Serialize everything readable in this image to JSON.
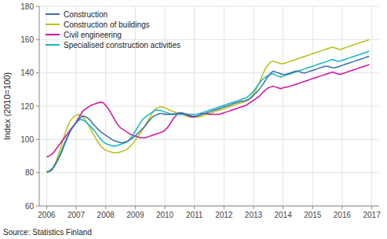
{
  "chart_data": {
    "type": "line",
    "y_label": "Index (2010=100)",
    "annotations": [
      "Source: Statistics Finland"
    ],
    "xlim": [
      2005.75,
      2017.25
    ],
    "ylim": [
      60,
      180
    ],
    "xticks": [
      2006,
      2007,
      2008,
      2009,
      2010,
      2011,
      2012,
      2013,
      2014,
      2015,
      2016,
      2017
    ],
    "yticks": [
      60,
      80,
      100,
      120,
      140,
      160,
      180
    ],
    "grid": true,
    "legend": "upper left",
    "x": [
      2006,
      2006.0833333333,
      2006.1666666667,
      2006.25,
      2006.3333333333,
      2006.4166666667,
      2006.5,
      2006.5833333333,
      2006.6666666667,
      2006.75,
      2006.8333333333,
      2006.9166666667,
      2007,
      2007.0833333333,
      2007.1666666667,
      2007.25,
      2007.3333333333,
      2007.4166666667,
      2007.5,
      2007.5833333333,
      2007.6666666667,
      2007.75,
      2007.8333333333,
      2007.9166666667,
      2008,
      2008.0833333333,
      2008.1666666667,
      2008.25,
      2008.3333333333,
      2008.4166666667,
      2008.5,
      2008.5833333333,
      2008.6666666667,
      2008.75,
      2008.8333333333,
      2008.9166666667,
      2009,
      2009.0833333333,
      2009.1666666667,
      2009.25,
      2009.3333333333,
      2009.4166666667,
      2009.5,
      2009.5833333333,
      2009.6666666667,
      2009.75,
      2009.8333333333,
      2009.9166666667,
      2010,
      2010.0833333333,
      2010.1666666667,
      2010.25,
      2010.3333333333,
      2010.4166666667,
      2010.5,
      2010.5833333333,
      2010.6666666667,
      2010.75,
      2010.8333333333,
      2010.9166666667,
      2011,
      2011.0833333333,
      2011.1666666667,
      2011.25,
      2011.3333333333,
      2011.4166666667,
      2011.5,
      2011.5833333333,
      2011.6666666667,
      2011.75,
      2011.8333333333,
      2011.9166666667,
      2012,
      2012.0833333333,
      2012.1666666667,
      2012.25,
      2012.3333333333,
      2012.4166666667,
      2012.5,
      2012.5833333333,
      2012.6666666667,
      2012.75,
      2012.8333333333,
      2012.9166666667,
      2013,
      2013.0833333333,
      2013.1666666667,
      2013.25,
      2013.3333333333,
      2013.4166666667,
      2013.5,
      2013.5833333333,
      2013.6666666667,
      2013.75,
      2013.8333333333,
      2013.9166666667,
      2014,
      2014.0833333333,
      2014.1666666667,
      2014.25,
      2014.3333333333,
      2014.4166666667,
      2014.5,
      2014.5833333333,
      2014.6666666667,
      2014.75,
      2014.8333333333,
      2014.9166666667,
      2015,
      2015.0833333333,
      2015.1666666667,
      2015.25,
      2015.3333333333,
      2015.4166666667,
      2015.5,
      2015.5833333333,
      2015.6666666667,
      2015.75,
      2015.8333333333,
      2015.9166666667,
      2016,
      2016.0833333333,
      2016.1666666667,
      2016.25,
      2016.3333333333,
      2016.4166666667,
      2016.5,
      2016.5833333333,
      2016.6666666667,
      2016.75,
      2016.8333333333,
      2016.9166666667
    ],
    "series": [
      {
        "name": "Construction of buildings",
        "color": "#b8c010",
        "values": [
          80.0,
          80.5,
          81.5,
          84.0,
          87.5,
          92.0,
          96.5,
          101.5,
          106.0,
          109.5,
          112.0,
          113.5,
          114.5,
          115.0,
          114.5,
          113.0,
          111.0,
          108.5,
          106.0,
          103.0,
          100.5,
          98.0,
          96.0,
          94.5,
          93.5,
          93.0,
          92.5,
          92.0,
          92.0,
          92.0,
          92.5,
          93.0,
          93.5,
          94.5,
          96.0,
          97.5,
          99.5,
          101.5,
          103.5,
          106.0,
          108.5,
          111.0,
          113.5,
          116.0,
          118.0,
          119.0,
          119.5,
          119.5,
          119.0,
          118.5,
          117.5,
          117.0,
          116.5,
          116.0,
          115.5,
          115.0,
          114.5,
          114.0,
          113.5,
          113.5,
          113.5,
          113.5,
          113.5,
          114.0,
          114.5,
          115.0,
          115.5,
          116.0,
          116.5,
          117.0,
          117.5,
          118.0,
          118.5,
          119.0,
          119.5,
          120.0,
          120.5,
          121.0,
          121.5,
          122.0,
          122.5,
          123.0,
          124.0,
          125.5,
          127.5,
          130.0,
          133.0,
          136.5,
          140.0,
          143.0,
          145.0,
          146.5,
          147.0,
          146.5,
          146.0,
          145.5,
          145.5,
          146.0,
          146.5,
          147.0,
          147.5,
          148.0,
          148.5,
          149.0,
          149.5,
          150.0,
          150.5,
          151.0,
          151.5,
          152.0,
          152.5,
          153.0,
          153.5,
          154.0,
          154.5,
          155.0,
          155.5,
          155.0,
          154.5,
          154.0,
          154.5,
          155.0,
          155.5,
          156.0,
          156.5,
          157.0,
          157.5,
          158.0,
          158.5,
          159.0,
          159.5,
          160.0
        ]
      },
      {
        "name": "Civil engineering",
        "color": "#d010a0",
        "values": [
          89.5,
          90.0,
          91.0,
          92.5,
          94.5,
          96.5,
          98.5,
          100.5,
          102.5,
          104.5,
          106.5,
          108.5,
          110.5,
          113.0,
          115.5,
          117.5,
          118.5,
          119.5,
          120.5,
          121.0,
          121.5,
          122.0,
          122.5,
          122.0,
          120.5,
          118.5,
          116.0,
          113.5,
          111.0,
          108.5,
          107.0,
          106.0,
          105.0,
          104.0,
          103.0,
          102.5,
          102.0,
          101.5,
          101.0,
          101.0,
          101.0,
          101.5,
          102.0,
          102.5,
          103.0,
          103.5,
          104.0,
          104.5,
          105.5,
          107.0,
          109.0,
          111.5,
          113.5,
          115.0,
          115.5,
          115.5,
          115.0,
          114.5,
          114.0,
          113.5,
          113.5,
          114.0,
          114.5,
          115.5,
          115.5,
          115.5,
          115.0,
          115.0,
          115.0,
          115.0,
          115.0,
          115.5,
          116.0,
          116.5,
          117.0,
          117.5,
          118.0,
          118.5,
          119.0,
          119.5,
          120.0,
          120.5,
          121.5,
          122.5,
          123.5,
          124.5,
          125.5,
          127.0,
          128.5,
          130.0,
          131.0,
          131.5,
          132.0,
          131.5,
          131.0,
          130.5,
          131.0,
          131.5,
          131.5,
          132.0,
          132.5,
          133.0,
          133.5,
          134.0,
          134.5,
          135.0,
          135.5,
          136.0,
          136.5,
          137.0,
          137.5,
          138.0,
          138.5,
          139.0,
          139.5,
          140.0,
          140.5,
          140.0,
          139.5,
          139.0,
          139.5,
          140.0,
          140.5,
          141.0,
          141.5,
          142.0,
          142.5,
          143.0,
          143.5,
          144.0,
          144.5,
          145.0
        ]
      },
      {
        "name": "Specialised construction activities",
        "color": "#10b8c0",
        "values": [
          80.5,
          81.0,
          82.0,
          84.0,
          86.5,
          89.5,
          93.0,
          97.0,
          100.5,
          103.5,
          106.0,
          108.0,
          110.0,
          111.5,
          112.0,
          111.5,
          110.5,
          109.0,
          107.5,
          106.0,
          104.0,
          102.0,
          100.0,
          98.5,
          97.5,
          97.0,
          96.5,
          96.0,
          96.0,
          96.5,
          97.0,
          97.5,
          98.0,
          99.0,
          100.5,
          102.5,
          105.0,
          107.5,
          110.0,
          112.0,
          113.5,
          114.5,
          115.5,
          116.5,
          117.5,
          117.5,
          117.5,
          117.0,
          116.5,
          116.0,
          115.5,
          115.0,
          115.0,
          115.0,
          115.0,
          115.0,
          115.0,
          115.0,
          115.0,
          115.0,
          115.0,
          115.0,
          115.5,
          116.0,
          116.5,
          117.0,
          117.5,
          118.0,
          118.5,
          119.0,
          119.5,
          120.0,
          120.5,
          121.0,
          121.5,
          122.0,
          122.5,
          123.0,
          123.5,
          124.0,
          124.5,
          125.0,
          126.0,
          127.5,
          129.0,
          131.0,
          133.0,
          135.0,
          136.5,
          137.5,
          138.5,
          139.0,
          139.5,
          138.5,
          138.0,
          137.5,
          138.0,
          138.5,
          139.0,
          139.5,
          140.0,
          140.5,
          141.0,
          141.5,
          142.0,
          142.5,
          143.0,
          143.5,
          144.0,
          144.5,
          145.0,
          145.5,
          146.0,
          146.5,
          147.0,
          147.5,
          148.0,
          147.5,
          147.0,
          147.0,
          147.5,
          148.0,
          148.5,
          149.0,
          149.5,
          150.0,
          150.5,
          151.0,
          151.5,
          152.0,
          152.5,
          153.0
        ]
      },
      {
        "name": "Construction",
        "color": "#3a6faa",
        "values": [
          80.5,
          80.8,
          81.5,
          83.5,
          86.0,
          89.0,
          92.0,
          96.0,
          99.5,
          103.0,
          106.0,
          108.0,
          110.0,
          112.0,
          113.5,
          114.0,
          113.5,
          112.5,
          111.0,
          109.0,
          107.5,
          106.0,
          104.5,
          103.5,
          102.5,
          101.5,
          100.5,
          99.5,
          99.0,
          98.5,
          98.0,
          98.0,
          98.5,
          99.0,
          100.0,
          101.0,
          102.0,
          103.5,
          105.0,
          106.5,
          108.0,
          110.0,
          112.0,
          113.5,
          114.5,
          115.0,
          115.5,
          115.5,
          115.0,
          115.0,
          115.0,
          115.0,
          115.5,
          115.5,
          116.0,
          116.0,
          115.5,
          115.0,
          114.5,
          114.0,
          114.0,
          114.0,
          114.5,
          115.0,
          115.5,
          116.0,
          116.5,
          117.0,
          117.5,
          118.0,
          118.5,
          119.0,
          119.5,
          120.0,
          120.5,
          121.0,
          121.5,
          122.0,
          122.5,
          123.0,
          123.0,
          123.5,
          124.0,
          125.0,
          126.5,
          128.0,
          129.5,
          131.5,
          133.5,
          136.0,
          138.0,
          140.0,
          141.0,
          140.5,
          140.0,
          139.5,
          139.0,
          139.0,
          139.5,
          140.0,
          140.5,
          141.0,
          141.0,
          140.5,
          140.0,
          140.0,
          140.5,
          141.0,
          141.5,
          142.0,
          142.5,
          143.0,
          143.5,
          144.0,
          144.0,
          143.5,
          143.0,
          143.0,
          143.5,
          144.0,
          144.5,
          145.0,
          145.5,
          146.0,
          146.5,
          147.0,
          147.5,
          148.0,
          148.5,
          149.0,
          149.5,
          150.0
        ]
      }
    ]
  }
}
